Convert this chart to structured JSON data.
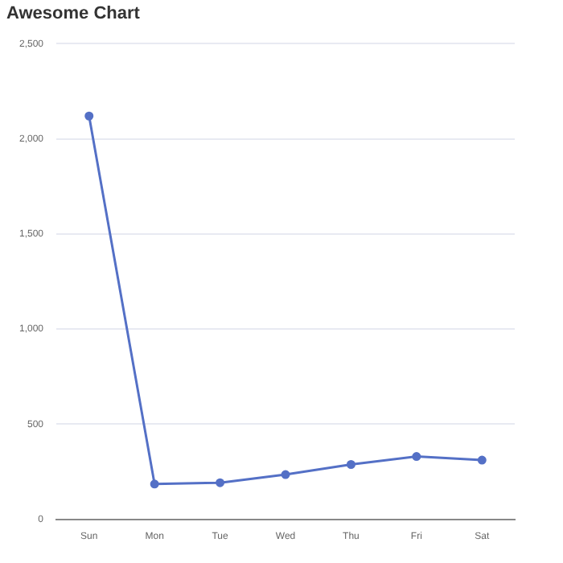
{
  "chart_data": {
    "type": "line",
    "title": "Awesome Chart",
    "categories": [
      "Sun",
      "Mon",
      "Tue",
      "Wed",
      "Thu",
      "Fri",
      "Sat"
    ],
    "series": [
      {
        "color": "#5470c6",
        "values": [
          2120,
          185,
          192,
          235,
          288,
          330,
          311
        ]
      }
    ],
    "ylim": [
      0,
      2500
    ],
    "yticks": [
      {
        "value": 0,
        "label": "0"
      },
      {
        "value": 500,
        "label": "500"
      },
      {
        "value": 1000,
        "label": "1,000"
      },
      {
        "value": 1500,
        "label": "1,500"
      },
      {
        "value": 2000,
        "label": "2,000"
      },
      {
        "value": 2500,
        "label": "2,500"
      }
    ],
    "grid": "y",
    "marker": "circle",
    "line_style": "solid",
    "legend": false
  }
}
